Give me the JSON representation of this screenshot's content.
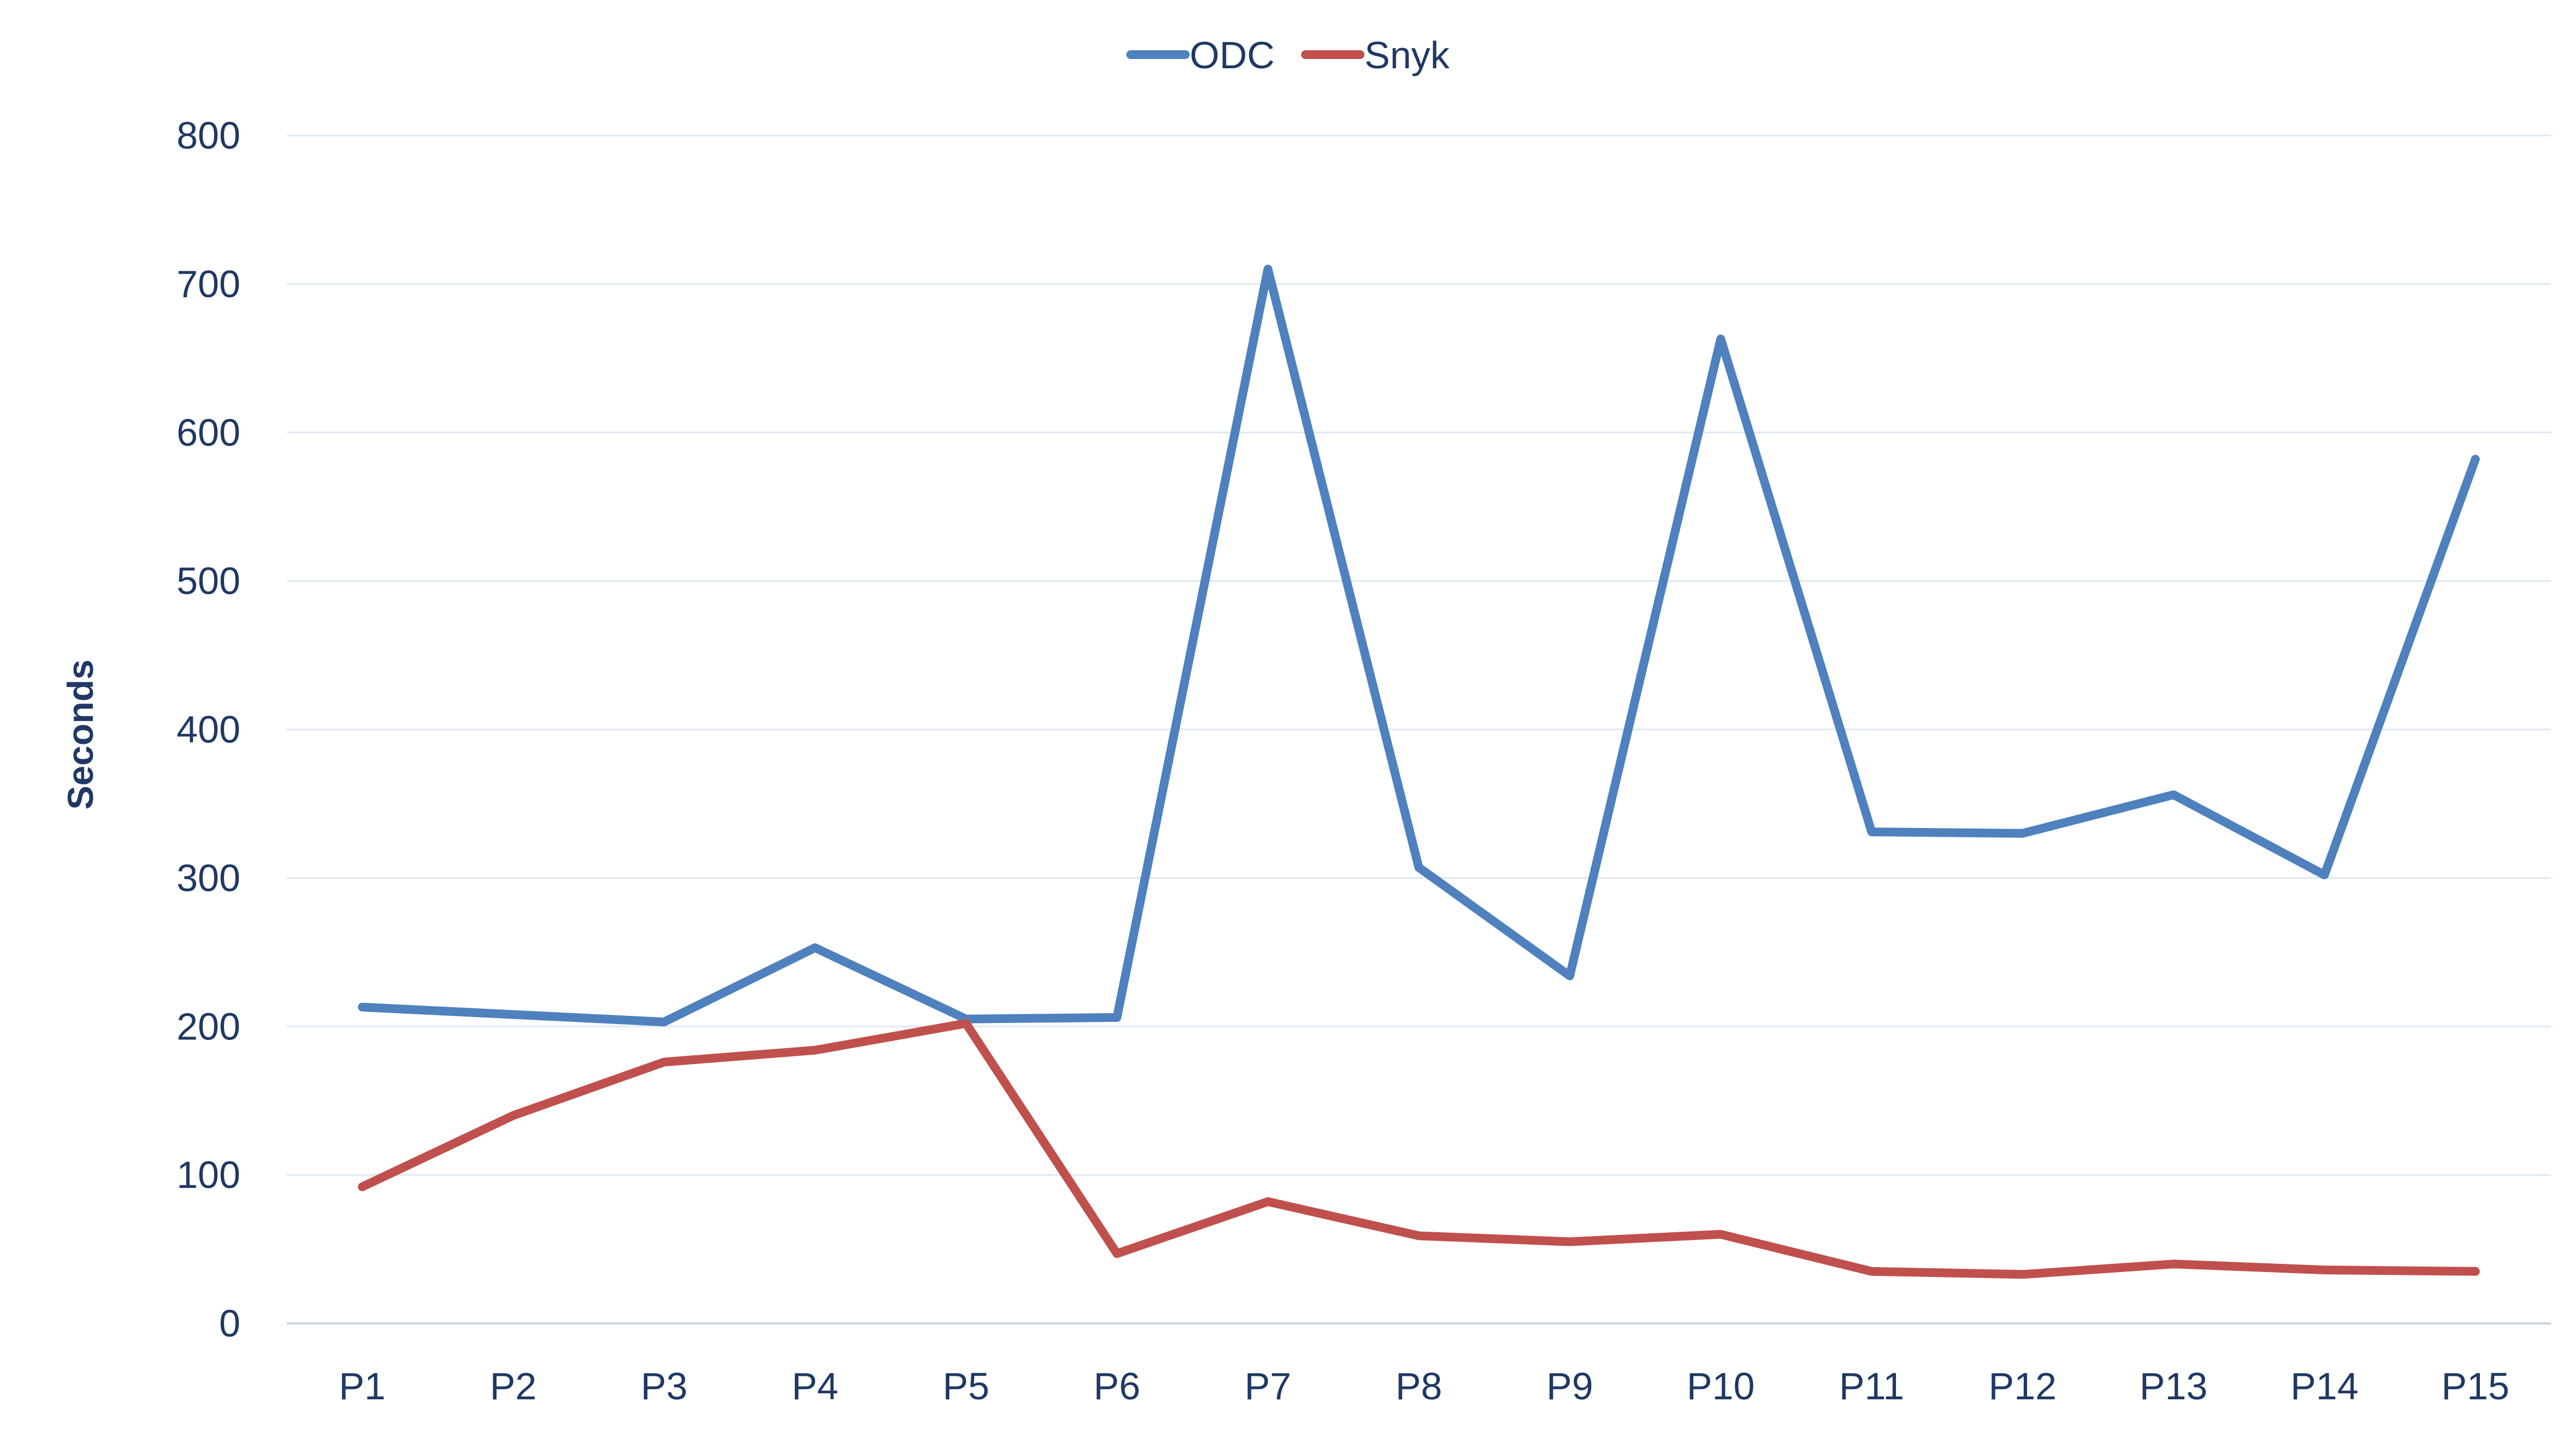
{
  "chart_data": {
    "type": "line",
    "title": "",
    "xlabel": "",
    "ylabel": "Seconds",
    "ylim": [
      0,
      800
    ],
    "yticks": [
      "0",
      "100",
      "200",
      "300",
      "400",
      "500",
      "600",
      "700",
      "800"
    ],
    "categories": [
      "P1",
      "P2",
      "P3",
      "P4",
      "P5",
      "P6",
      "P7",
      "P8",
      "P9",
      "P10",
      "P11",
      "P12",
      "P13",
      "P14",
      "P15"
    ],
    "grid": true,
    "legend_position": "top-center",
    "series": [
      {
        "name": "ODC",
        "color": "#4E81BD",
        "values": [
          213,
          208,
          203,
          253,
          205,
          206,
          710,
          307,
          234,
          663,
          331,
          330,
          356,
          302,
          582
        ]
      },
      {
        "name": "Snyk",
        "color": "#C0504D",
        "values": [
          92,
          140,
          176,
          184,
          202,
          47,
          82,
          59,
          55,
          60,
          35,
          33,
          40,
          36,
          35
        ]
      }
    ],
    "colors": {
      "text": "#1F3864",
      "grid": "#DDE8F2",
      "axis": "#C9D6E3"
    }
  }
}
